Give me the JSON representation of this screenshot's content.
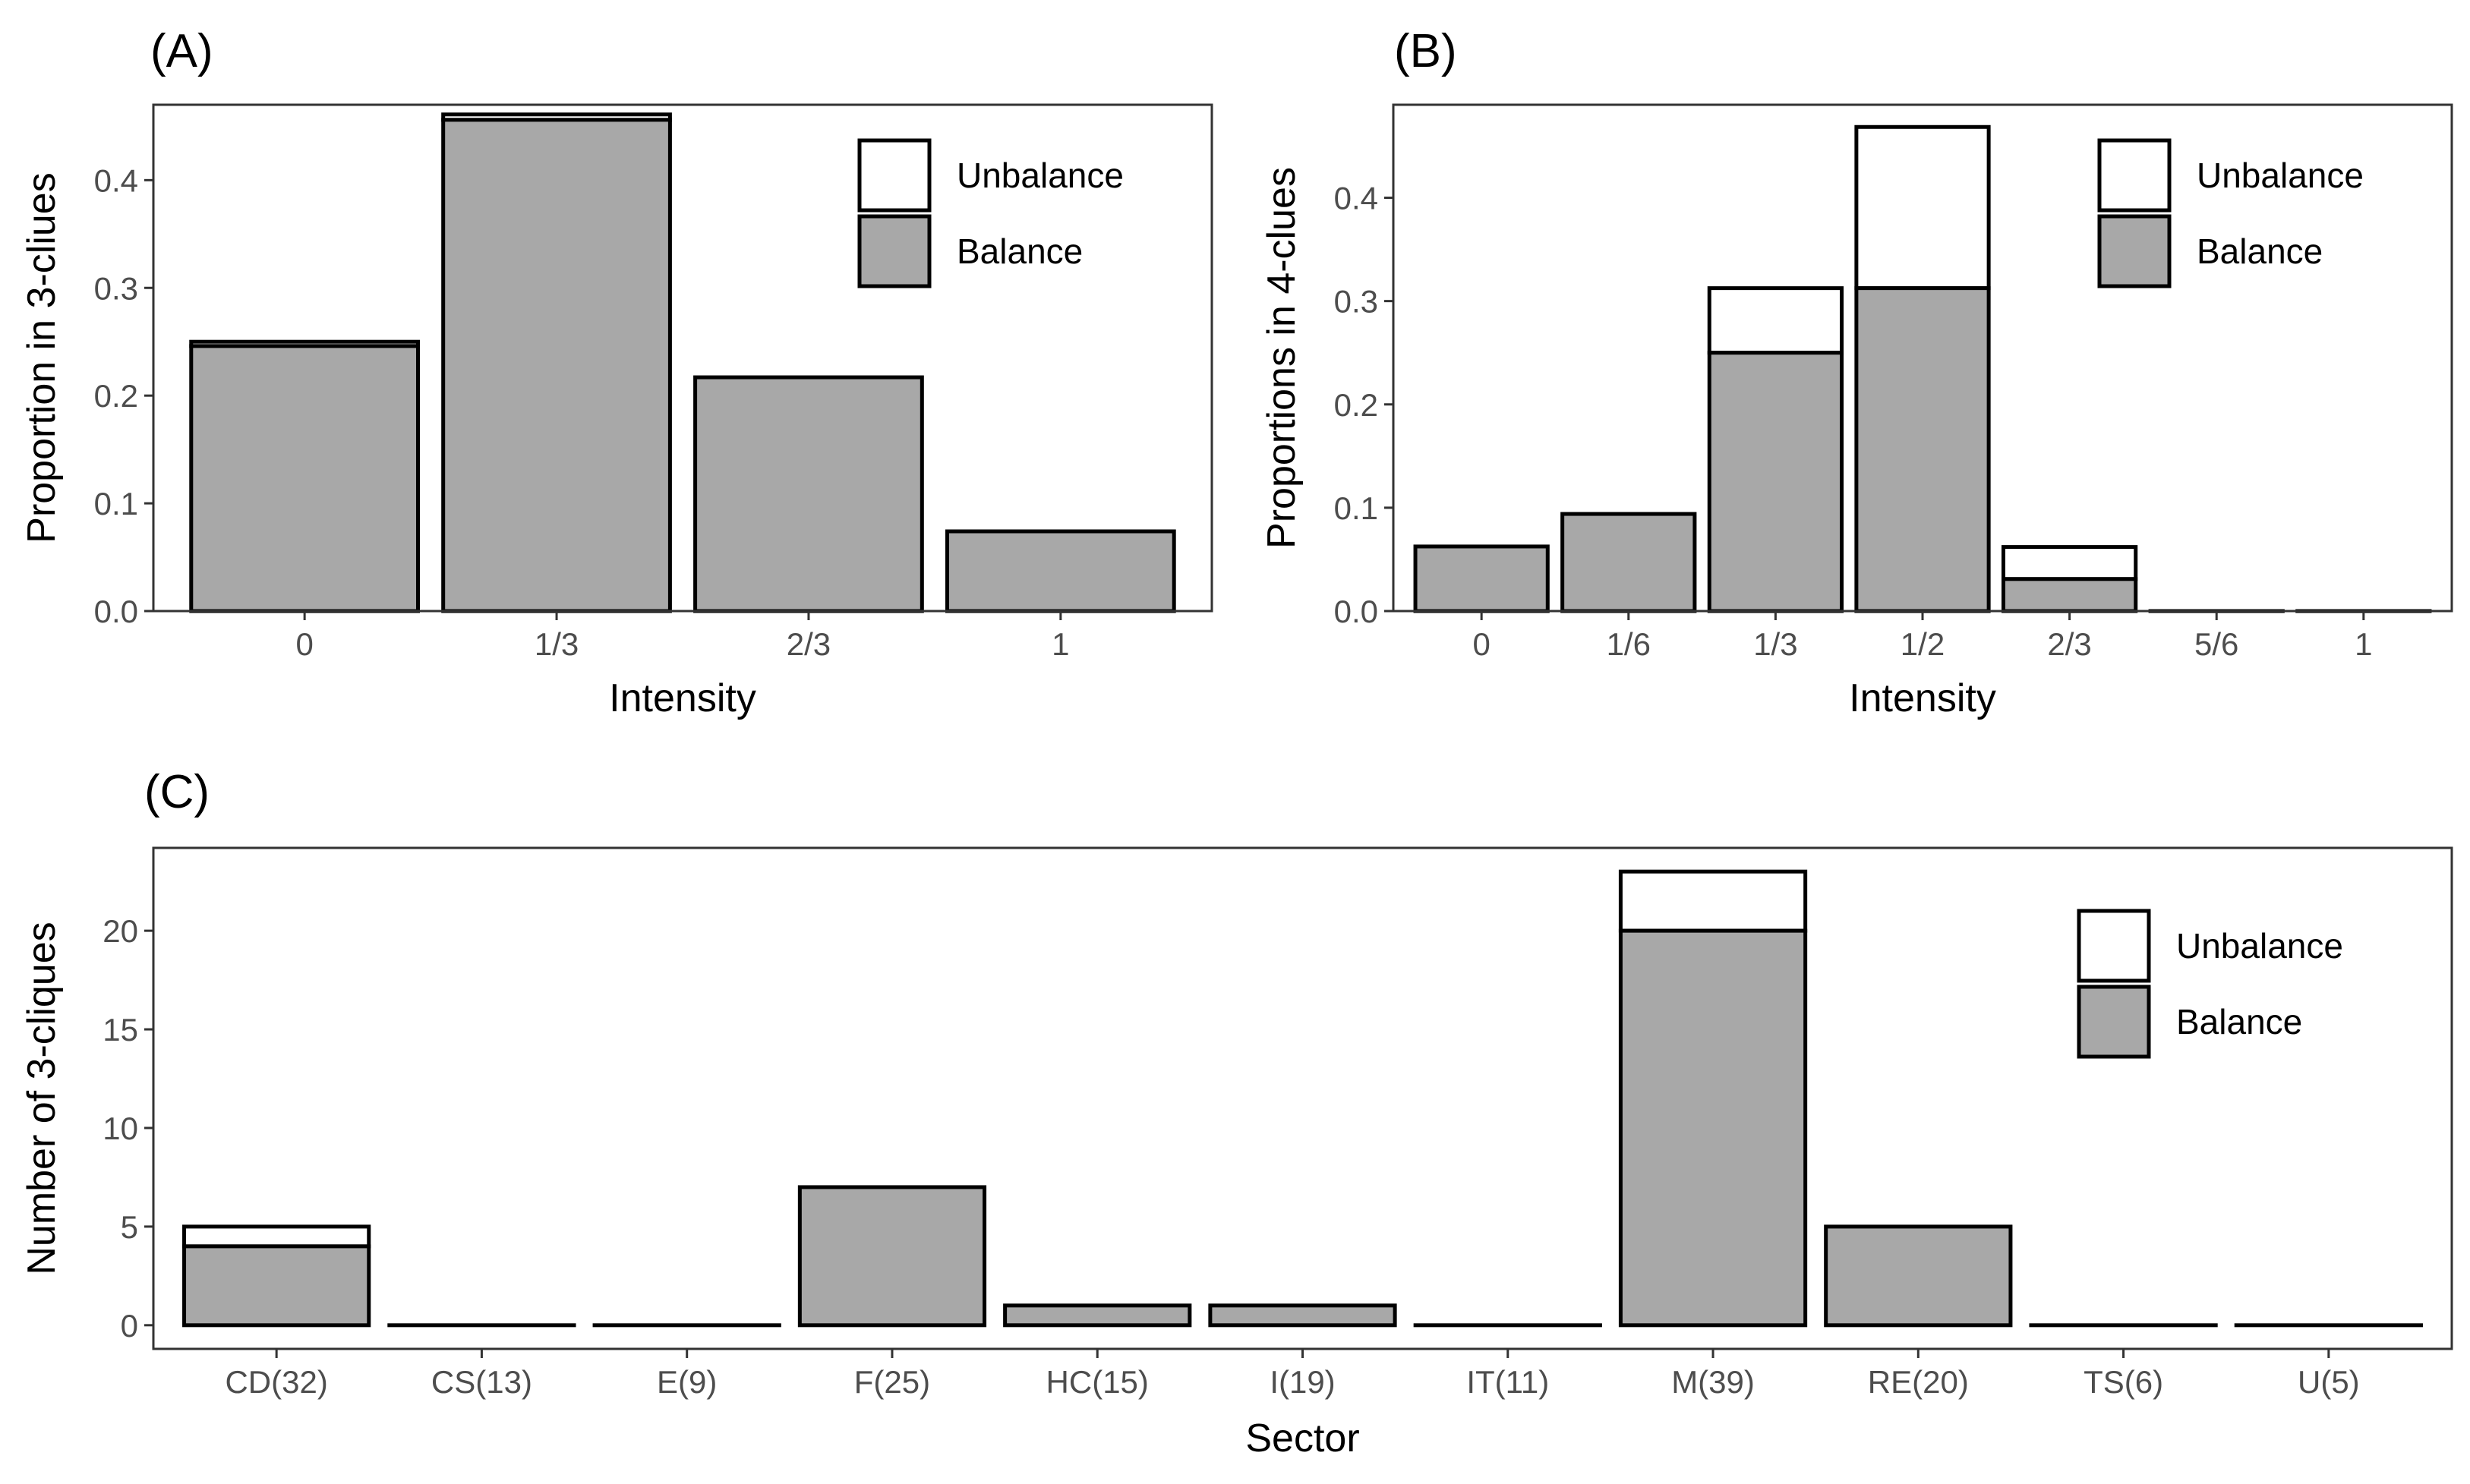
{
  "chart_data": [
    {
      "panel": "(A)",
      "type": "bar",
      "stacked": true,
      "xlabel": "Intensity",
      "ylabel": "Proportion in 3-cliues",
      "categories": [
        "0",
        "1/3",
        "2/3",
        "1"
      ],
      "series": [
        {
          "name": "Balance",
          "values": [
            0.246,
            0.456,
            0.217,
            0.074
          ]
        },
        {
          "name": "Unbalance",
          "values": [
            0.004,
            0.005,
            0.0,
            0.0
          ]
        }
      ],
      "ylim": [
        0,
        0.47
      ],
      "yticks": [
        0.0,
        0.1,
        0.2,
        0.3,
        0.4
      ],
      "ytick_labels": [
        "0.0",
        "0.1",
        "0.2",
        "0.3",
        "0.4"
      ],
      "legend": {
        "position": "top-right",
        "entries": [
          "Unbalance",
          "Balance"
        ]
      },
      "grid": false
    },
    {
      "panel": "(B)",
      "type": "bar",
      "stacked": true,
      "xlabel": "Intensity",
      "ylabel": "Proportions in 4-clues",
      "categories": [
        "0",
        "1/6",
        "1/3",
        "1/2",
        "2/3",
        "5/6",
        "1"
      ],
      "series": [
        {
          "name": "Balance",
          "values": [
            0.0625,
            0.094,
            0.25,
            0.3125,
            0.031,
            0.0,
            0.0
          ]
        },
        {
          "name": "Unbalance",
          "values": [
            0.0,
            0.0,
            0.0625,
            0.156,
            0.031,
            0.0,
            0.0
          ]
        }
      ],
      "ylim": [
        0,
        0.49
      ],
      "yticks": [
        0.0,
        0.1,
        0.2,
        0.3,
        0.4
      ],
      "ytick_labels": [
        "0.0",
        "0.1",
        "0.2",
        "0.3",
        "0.4"
      ],
      "legend": {
        "position": "top-right",
        "entries": [
          "Unbalance",
          "Balance"
        ]
      },
      "grid": false
    },
    {
      "panel": "(C)",
      "type": "bar",
      "stacked": true,
      "xlabel": "Sector",
      "ylabel": "Number of 3-cliques",
      "categories": [
        "CD(32)",
        "CS(13)",
        "E(9)",
        "F(25)",
        "HC(15)",
        "I(19)",
        "IT(11)",
        "M(39)",
        "RE(20)",
        "TS(6)",
        "U(5)"
      ],
      "series": [
        {
          "name": "Balance",
          "values": [
            4,
            0,
            0,
            7,
            1,
            1,
            0,
            20,
            5,
            0,
            0
          ]
        },
        {
          "name": "Unbalance",
          "values": [
            1,
            0,
            0,
            0,
            0,
            0,
            0,
            3,
            0,
            0,
            0
          ]
        }
      ],
      "ylim": [
        -1.2,
        24.2
      ],
      "yticks": [
        0,
        5,
        10,
        15,
        20
      ],
      "ytick_labels": [
        "0",
        "5",
        "10",
        "15",
        "20"
      ],
      "legend": {
        "position": "top-right",
        "entries": [
          "Unbalance",
          "Balance"
        ]
      },
      "grid": false
    }
  ],
  "colors": {
    "balance": "#a8a8a8",
    "unbalance": "#ffffff",
    "outline": "#000000",
    "frame": "#333333",
    "tick_text": "#4d4d4d"
  }
}
